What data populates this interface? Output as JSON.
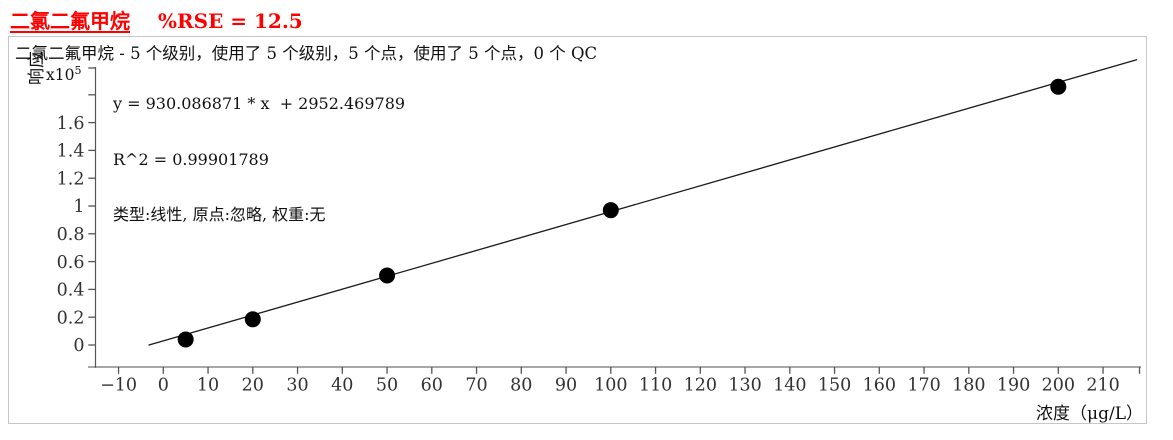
{
  "title": {
    "compound": "二氯二氟甲烷",
    "rse": "%RSE = 12.5",
    "color": "#ff0000"
  },
  "info_line": "二氯二氟甲烷 - 5 个级别，使用了 5 个级别，5 个点，使用了 5 个点，0 个 QC",
  "fit_stats": {
    "equation": "y = 930.086871 * x  + 2952.469789",
    "r_squared": "R^2 = 0.99901789",
    "model": "类型:线性, 原点:忽略, 权重:无"
  },
  "axes": {
    "y_label": "响应",
    "y_scale_factor": "x10",
    "y_scale_exp": "5",
    "x_label": "浓度（μg/L）"
  },
  "chart_data": {
    "type": "scatter",
    "title": "二氯二氟甲烷 %RSE = 12.5",
    "xlabel": "浓度（μg/L）",
    "ylabel": "响应",
    "y_scale": "x10^5",
    "x": [
      5,
      20,
      50,
      100,
      200
    ],
    "y": [
      4000,
      18500,
      50000,
      97000,
      185800
    ],
    "fit": {
      "type": "linear",
      "slope": 930.086871,
      "intercept": 2952.469789,
      "r_squared": 0.99901789,
      "rse_percent": 12.5,
      "origin": "忽略",
      "weight": "无",
      "levels": 5,
      "levels_used": 5,
      "points": 5,
      "points_used": 5,
      "qc_count": 0
    },
    "x_ticks": [
      -10,
      0,
      10,
      20,
      30,
      40,
      50,
      60,
      70,
      80,
      90,
      100,
      110,
      120,
      130,
      140,
      150,
      160,
      170,
      180,
      190,
      200,
      210
    ],
    "y_ticks_values": [
      0,
      0.2,
      0.4,
      0.6,
      0.8,
      1,
      1.2,
      1.4,
      1.6
    ],
    "y_tick_labels": [
      "0",
      "0.2",
      "0.4",
      "0.6",
      "0.8",
      "1",
      "1.2",
      "1.4",
      "1.6"
    ],
    "y_minor_ticks": [
      1.8
    ],
    "x_range": [
      -15.3,
      218.5
    ],
    "y_range_1e5": [
      -0.158,
      1.993
    ],
    "grid": false,
    "legend": false,
    "point_color": "#000000",
    "line_color": "#1a1a1a"
  },
  "colors": {
    "frame_border": "#c6c6c6",
    "x_axis": "#8a8a8a",
    "y_axis": "#555555",
    "tick": "#555555",
    "tick_label": "#323232",
    "text": "#111111"
  }
}
